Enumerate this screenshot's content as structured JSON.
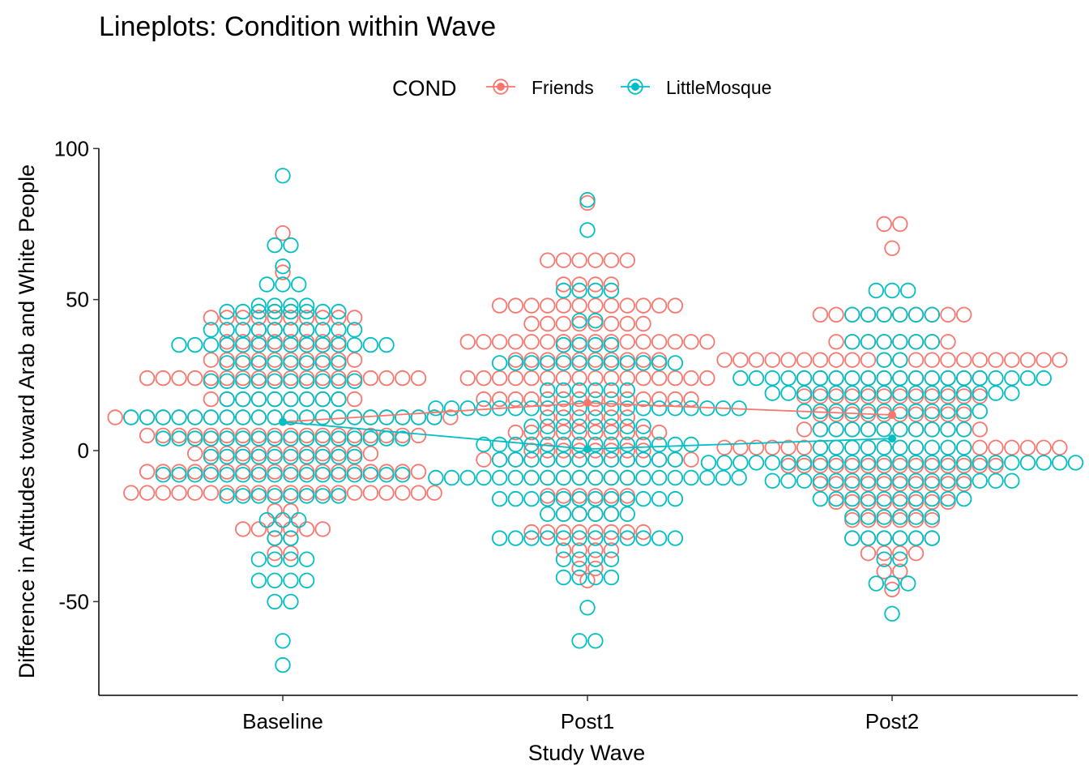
{
  "chart_data": {
    "type": "scatter",
    "subtype": "dotplot-with-mean-lines",
    "title": "Lineplots: Condition within Wave",
    "xlabel": "Study Wave",
    "ylabel": "Difference in Attitudes toward Arab and White People",
    "categories": [
      "Baseline",
      "Post1",
      "Post2"
    ],
    "ylim": [
      -85,
      102
    ],
    "yticks": [
      100,
      50,
      0,
      -50
    ],
    "ytick_labels": [
      "100",
      "50",
      "0",
      "-50"
    ],
    "grid": false,
    "legend": {
      "title": "COND",
      "position": "top",
      "entries": [
        "Friends",
        "LittleMosque"
      ]
    },
    "series": [
      {
        "name": "Friends",
        "color": "#F8766D",
        "means": [
          9.5,
          15.8,
          11.8
        ],
        "dots": [
          {
            "category": "Baseline",
            "levels": [
              [
                72,
                1
              ],
              [
                59,
                1
              ],
              [
                46,
                2
              ],
              [
                44,
                10
              ],
              [
                40,
                4
              ],
              [
                36,
                8
              ],
              [
                30,
                10
              ],
              [
                24,
                18
              ],
              [
                17,
                10
              ],
              [
                11,
                22
              ],
              [
                5,
                18
              ],
              [
                -1,
                12
              ],
              [
                -7,
                18
              ],
              [
                -14,
                20
              ],
              [
                -20,
                2
              ],
              [
                -26,
                6
              ],
              [
                -29,
                2
              ],
              [
                -34,
                2
              ]
            ]
          },
          {
            "category": "Post1",
            "levels": [
              [
                82,
                1
              ],
              [
                63,
                6
              ],
              [
                55,
                4
              ],
              [
                48,
                12
              ],
              [
                42,
                8
              ],
              [
                36,
                16
              ],
              [
                30,
                10
              ],
              [
                24,
                16
              ],
              [
                17,
                14
              ],
              [
                11,
                6
              ],
              [
                6,
                10
              ],
              [
                0,
                8
              ],
              [
                -3,
                14
              ],
              [
                -9,
                8
              ],
              [
                -15,
                6
              ],
              [
                -21,
                4
              ],
              [
                -27,
                8
              ],
              [
                -33,
                4
              ],
              [
                -39,
                2
              ],
              [
                -43,
                1
              ]
            ]
          },
          {
            "category": "Post2",
            "levels": [
              [
                75,
                2
              ],
              [
                67,
                1
              ],
              [
                45,
                10
              ],
              [
                36,
                8
              ],
              [
                30,
                22
              ],
              [
                24,
                12
              ],
              [
                18,
                12
              ],
              [
                12,
                10
              ],
              [
                7,
                12
              ],
              [
                1,
                22
              ],
              [
                -5,
                14
              ],
              [
                -11,
                10
              ],
              [
                -17,
                8
              ],
              [
                -23,
                6
              ],
              [
                -29,
                6
              ],
              [
                -34,
                4
              ],
              [
                -40,
                2
              ],
              [
                -46,
                1
              ]
            ]
          }
        ]
      },
      {
        "name": "LittleMosque",
        "color": "#00BFC4",
        "means": [
          9.5,
          0.5,
          4.0
        ],
        "dots": [
          {
            "category": "Baseline",
            "levels": [
              [
                91,
                1
              ],
              [
                68,
                2
              ],
              [
                61,
                1
              ],
              [
                55,
                3
              ],
              [
                48,
                4
              ],
              [
                46,
                8
              ],
              [
                40,
                10
              ],
              [
                35,
                14
              ],
              [
                29,
                8
              ],
              [
                23,
                10
              ],
              [
                17,
                8
              ],
              [
                11,
                20
              ],
              [
                4,
                16
              ],
              [
                -2,
                10
              ],
              [
                -8,
                16
              ],
              [
                -15,
                8
              ],
              [
                -23,
                3
              ],
              [
                -29,
                2
              ],
              [
                -36,
                4
              ],
              [
                -43,
                4
              ],
              [
                -50,
                2
              ],
              [
                -63,
                1
              ],
              [
                -71,
                1
              ]
            ]
          },
          {
            "category": "Post1",
            "levels": [
              [
                83,
                1
              ],
              [
                73,
                1
              ],
              [
                53,
                4
              ],
              [
                43,
                2
              ],
              [
                35,
                4
              ],
              [
                29,
                12
              ],
              [
                20,
                6
              ],
              [
                14,
                20
              ],
              [
                8,
                8
              ],
              [
                2,
                14
              ],
              [
                -3,
                12
              ],
              [
                -9,
                20
              ],
              [
                -16,
                12
              ],
              [
                -21,
                6
              ],
              [
                -29,
                12
              ],
              [
                -36,
                4
              ],
              [
                -42,
                4
              ],
              [
                -52,
                1
              ],
              [
                -63,
                2
              ]
            ]
          },
          {
            "category": "Post2",
            "levels": [
              [
                53,
                3
              ],
              [
                45,
                6
              ],
              [
                36,
                6
              ],
              [
                30,
                2
              ],
              [
                24,
                20
              ],
              [
                19,
                16
              ],
              [
                13,
                12
              ],
              [
                7,
                10
              ],
              [
                1,
                10
              ],
              [
                -4,
                24
              ],
              [
                -10,
                16
              ],
              [
                -16,
                10
              ],
              [
                -22,
                6
              ],
              [
                -29,
                6
              ],
              [
                -36,
                2
              ],
              [
                -44,
                3
              ],
              [
                -54,
                1
              ]
            ]
          }
        ]
      }
    ]
  }
}
